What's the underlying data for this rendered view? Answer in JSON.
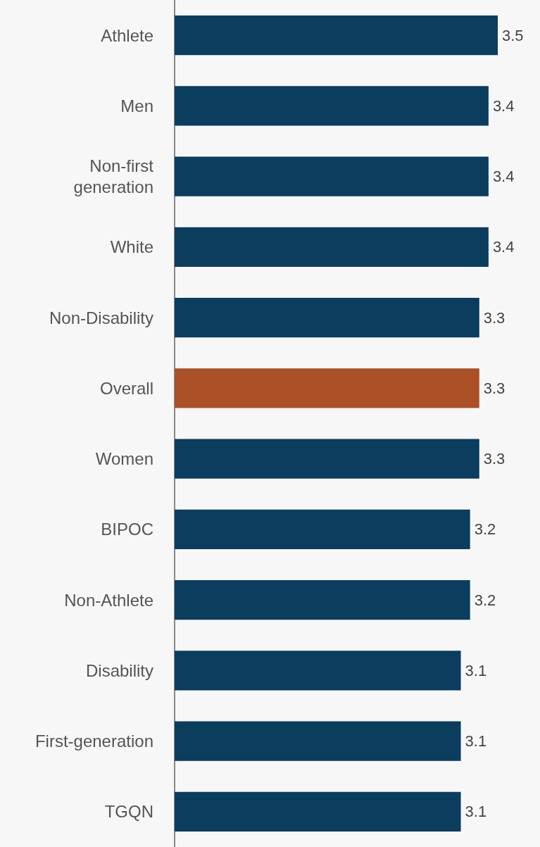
{
  "chart_data": {
    "type": "bar",
    "orientation": "horizontal",
    "categories": [
      "Athlete",
      "Men",
      "Non-first\ngeneration",
      "White",
      "Non-Disability",
      "Overall",
      "Women",
      "BIPOC",
      "Non-Athlete",
      "Disability",
      "First-generation",
      "TGQN"
    ],
    "values": [
      3.5,
      3.4,
      3.4,
      3.4,
      3.3,
      3.3,
      3.3,
      3.2,
      3.2,
      3.1,
      3.1,
      3.1
    ],
    "colors": [
      "#0a3d5e",
      "#0a3d5e",
      "#0a3d5e",
      "#0a3d5e",
      "#0a3d5e",
      "#ab5027",
      "#0a3d5e",
      "#0a3d5e",
      "#0a3d5e",
      "#0a3d5e",
      "#0a3d5e",
      "#0a3d5e"
    ],
    "data_labels": true,
    "grid": false
  }
}
